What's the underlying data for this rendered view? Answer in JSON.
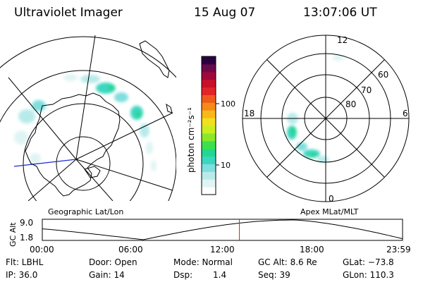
{
  "header": {
    "instrument": "Ultraviolet Imager",
    "date": "15 Aug 07",
    "time": "13:07:06 UT"
  },
  "left_map": {
    "label": "Geographic Lat/Lon"
  },
  "right_map": {
    "label": "Apex MLat/MLT",
    "mlt_labels": {
      "top": "12",
      "left": "18",
      "right": "6",
      "bottom": "0"
    },
    "lat_labels": [
      "60",
      "70",
      "80"
    ]
  },
  "colorbar": {
    "unit_label": "photon cm⁻²s⁻¹",
    "tick_100": "100",
    "tick_10": "10",
    "colors": [
      "#ffffff",
      "#e0f4f4",
      "#b8eaea",
      "#7fdede",
      "#3cd6c0",
      "#22d890",
      "#3ee04a",
      "#8ae82a",
      "#c8ee22",
      "#f0e020",
      "#f8b818",
      "#f58a18",
      "#ef5a1c",
      "#e32426",
      "#c8102a",
      "#a0083a",
      "#6a0a4a",
      "#2a0040"
    ]
  },
  "altitude_plot": {
    "ylabel": "GC Alt",
    "yticks": [
      "9.0",
      "1.8"
    ],
    "xticks": [
      "00:00",
      "06:00",
      "12:00",
      "18:00",
      "23:59"
    ],
    "current_time_fraction": 0.547
  },
  "info": {
    "flt": "Flt: LBHL",
    "ip": "IP: 36.0",
    "door": "Door: Open",
    "gain": "Gain: 14",
    "mode": "Mode: Normal",
    "dsp_label": "Dsp:",
    "dsp_value": "1.4",
    "gc_alt": "GC Alt: 8.6 Re",
    "seq": "Seq: 39",
    "glat": "GLat: −73.8",
    "glon": "GLon: 110.3"
  }
}
